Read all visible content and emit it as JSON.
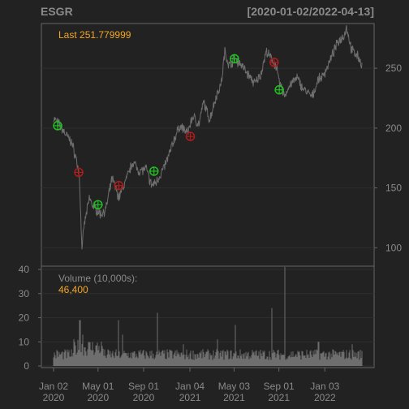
{
  "header": {
    "symbol": "ESGR",
    "date_range": "[2020-01-02/2022-04-13]"
  },
  "chart_data": [
    {
      "type": "line",
      "name": "price",
      "last_label": "Last 251.779999",
      "x_range": [
        "2020-01-02",
        "2022-04-13"
      ],
      "ylim": [
        88,
        284
      ],
      "y_ticks": [
        100,
        150,
        200,
        250
      ],
      "grid": true,
      "colors": {
        "line": "#6e6e6e",
        "buy": "#22c022",
        "sell": "#b01c1c",
        "last_label": "#f5a623"
      },
      "anchors": [
        [
          "2020-01-02",
          208
        ],
        [
          "2020-01-15",
          204
        ],
        [
          "2020-02-01",
          196
        ],
        [
          "2020-02-20",
          188
        ],
        [
          "2020-03-05",
          172
        ],
        [
          "2020-03-12",
          158
        ],
        [
          "2020-03-16",
          120
        ],
        [
          "2020-03-19",
          98
        ],
        [
          "2020-03-24",
          118
        ],
        [
          "2020-04-08",
          142
        ],
        [
          "2020-04-15",
          136
        ],
        [
          "2020-04-24",
          133
        ],
        [
          "2020-05-08",
          128
        ],
        [
          "2020-05-22",
          132
        ],
        [
          "2020-06-08",
          158
        ],
        [
          "2020-06-26",
          142
        ],
        [
          "2020-07-15",
          156
        ],
        [
          "2020-08-03",
          172
        ],
        [
          "2020-08-20",
          164
        ],
        [
          "2020-09-08",
          166
        ],
        [
          "2020-09-22",
          152
        ],
        [
          "2020-10-05",
          155
        ],
        [
          "2020-10-26",
          167
        ],
        [
          "2020-11-09",
          178
        ],
        [
          "2020-11-24",
          192
        ],
        [
          "2020-12-08",
          202
        ],
        [
          "2020-12-28",
          196
        ],
        [
          "2021-01-12",
          210
        ],
        [
          "2021-01-28",
          203
        ],
        [
          "2021-02-10",
          222
        ],
        [
          "2021-02-26",
          207
        ],
        [
          "2021-03-15",
          226
        ],
        [
          "2021-03-30",
          238
        ],
        [
          "2021-04-08",
          264
        ],
        [
          "2021-04-20",
          252
        ],
        [
          "2021-05-04",
          258
        ],
        [
          "2021-05-20",
          254
        ],
        [
          "2021-06-07",
          246
        ],
        [
          "2021-06-28",
          237
        ],
        [
          "2021-07-14",
          245
        ],
        [
          "2021-07-29",
          264
        ],
        [
          "2021-08-09",
          259
        ],
        [
          "2021-08-24",
          252
        ],
        [
          "2021-09-02",
          238
        ],
        [
          "2021-09-16",
          227
        ],
        [
          "2021-10-01",
          236
        ],
        [
          "2021-10-20",
          242
        ],
        [
          "2021-11-05",
          233
        ],
        [
          "2021-11-30",
          226
        ],
        [
          "2021-12-15",
          240
        ],
        [
          "2021-12-30",
          244
        ],
        [
          "2022-01-18",
          257
        ],
        [
          "2022-02-07",
          272
        ],
        [
          "2022-02-22",
          277
        ],
        [
          "2022-03-03",
          284
        ],
        [
          "2022-03-16",
          265
        ],
        [
          "2022-03-28",
          262
        ],
        [
          "2022-04-06",
          258
        ],
        [
          "2022-04-13",
          252
        ]
      ],
      "buy_signals": [
        {
          "date": "2020-01-13",
          "price": 202
        },
        {
          "date": "2020-05-01",
          "price": 136
        },
        {
          "date": "2020-09-29",
          "price": 164
        },
        {
          "date": "2021-05-04",
          "price": 258
        },
        {
          "date": "2021-09-02",
          "price": 232
        }
      ],
      "sell_signals": [
        {
          "date": "2020-03-10",
          "price": 163
        },
        {
          "date": "2020-06-26",
          "price": 152
        },
        {
          "date": "2021-01-05",
          "price": 193
        },
        {
          "date": "2021-08-19",
          "price": 255
        }
      ]
    },
    {
      "type": "bar",
      "name": "volume",
      "label": "Volume (10,000s):",
      "last_value": "46,400",
      "ylim": [
        0,
        40
      ],
      "y_ticks": [
        0,
        10,
        20,
        30,
        40
      ],
      "typical_level": 5,
      "spikes": [
        {
          "date": "2020-03-13",
          "value": 19
        },
        {
          "date": "2020-03-20",
          "value": 13
        },
        {
          "date": "2020-06-26",
          "value": 19
        },
        {
          "date": "2020-07-06",
          "value": 13
        },
        {
          "date": "2020-10-09",
          "value": 22
        },
        {
          "date": "2020-12-18",
          "value": 9
        },
        {
          "date": "2021-03-19",
          "value": 11
        },
        {
          "date": "2021-05-07",
          "value": 17
        },
        {
          "date": "2021-08-13",
          "value": 24
        },
        {
          "date": "2021-09-17",
          "value": 41
        },
        {
          "date": "2021-12-17",
          "value": 10
        },
        {
          "date": "2022-03-18",
          "value": 9
        }
      ],
      "colors": {
        "bar": "#6e6e6e",
        "label": "#8a8a8a",
        "value": "#f5a623"
      }
    }
  ],
  "x_axis": {
    "ticks": [
      {
        "date": "2020-01-02",
        "line1": "Jan 02",
        "line2": "2020"
      },
      {
        "date": "2020-05-01",
        "line1": "May 01",
        "line2": "2020"
      },
      {
        "date": "2020-09-01",
        "line1": "Sep 01",
        "line2": "2020"
      },
      {
        "date": "2021-01-04",
        "line1": "Jan 04",
        "line2": "2021"
      },
      {
        "date": "2021-05-03",
        "line1": "May 03",
        "line2": "2021"
      },
      {
        "date": "2021-09-01",
        "line1": "Sep 01",
        "line2": "2021"
      },
      {
        "date": "2022-01-03",
        "line1": "Jan 03",
        "line2": "2022"
      }
    ]
  }
}
